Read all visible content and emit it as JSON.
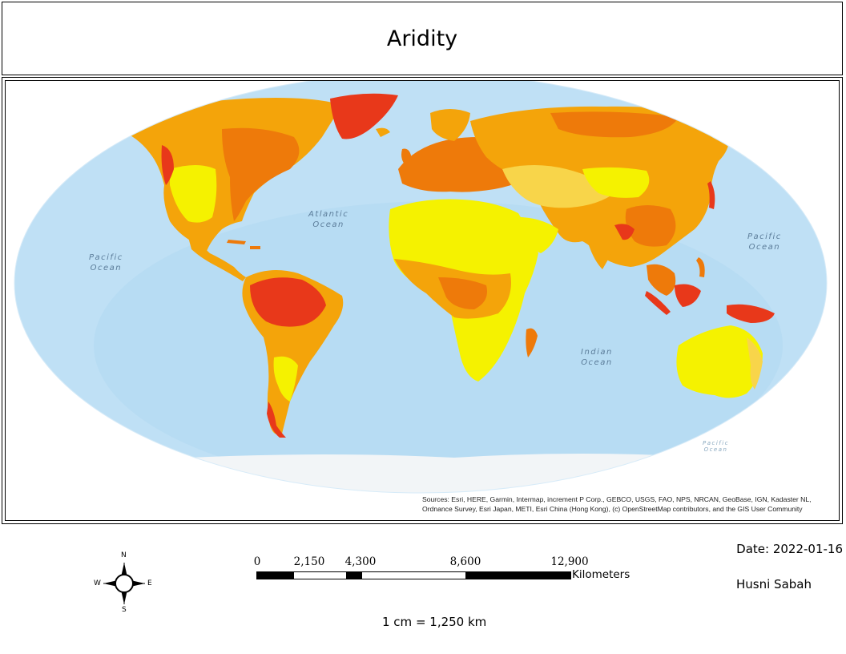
{
  "title": "Aridity",
  "ocean_labels": {
    "atlantic": "Atlantic\nOcean",
    "pacific_west": "Pacific\nOcean",
    "pacific_east": "Pacific\nOcean",
    "indian": "Indian\nOcean",
    "pacific_south": "Pacific\nOcean"
  },
  "credits": "Sources: Esri, HERE, Garmin, Intermap, increment P Corp., GEBCO, USGS, FAO, NPS, NRCAN, GeoBase, IGN, Kadaster NL, Ordnance Survey, Esri Japan, METI, Esri China (Hong Kong), (c) OpenStreetMap contributors, and the GIS User Community",
  "compass": {
    "n": "N",
    "s": "S",
    "e": "E",
    "w": "W"
  },
  "scale_bar": {
    "ticks": [
      "0",
      "2,150",
      "4,300",
      "8,600",
      "12,900"
    ],
    "units": "Kilometers",
    "text": "1 cm = 1,250 km"
  },
  "date": "Date: 2022-01-16",
  "author": "Husni Sabah",
  "colors": {
    "ocean": "#bfe0f5",
    "ocean_deep": "#a9d3ef",
    "ice": "#f4f6f8",
    "very_arid": "#f5f200",
    "arid": "#f8d54a",
    "semi_arid": "#f4a40a",
    "humid": "#ee7a0a",
    "very_humid": "#e8381a"
  }
}
